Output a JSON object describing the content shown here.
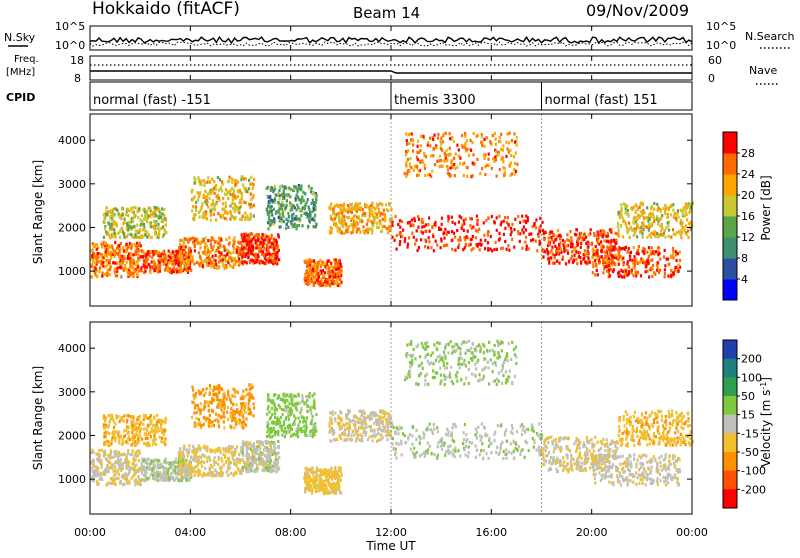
{
  "header": {
    "station": "Hokkaido (fitACF)",
    "beam": "Beam 14",
    "date": "09/Nov/2009"
  },
  "labels": {
    "nsky": "N.Sky",
    "nsearch": "N.Search",
    "freq_line1": "Freq.",
    "freq_line2": "[MHz]",
    "nave": "Nave",
    "cpid": "CPID",
    "nsky_ticks": [
      "10^5",
      "10^0"
    ],
    "nsearch_ticks": [
      "10^5",
      "10^0"
    ],
    "freq_ticks": [
      "18",
      "8"
    ],
    "nave_ticks": [
      "60",
      "0"
    ]
  },
  "cpid_segments": [
    {
      "label": "normal (fast) -151",
      "start_hour": 0,
      "end_hour": 12
    },
    {
      "label": "themis 3300",
      "start_hour": 12,
      "end_hour": 18
    },
    {
      "label": "normal (fast) 151",
      "start_hour": 18,
      "end_hour": 24
    }
  ],
  "x_axis": {
    "label": "Time UT",
    "range_hours": [
      0,
      24
    ],
    "ticks": [
      0,
      4,
      8,
      12,
      16,
      20,
      24
    ],
    "tick_labels": [
      "00:00",
      "04:00",
      "08:00",
      "12:00",
      "16:00",
      "20:00",
      "00:00"
    ]
  },
  "panels": [
    {
      "id": "power",
      "ylabel": "Slant Range [km]",
      "ylim": [
        200,
        4600
      ],
      "yticks": [
        1000,
        2000,
        3000,
        4000
      ],
      "ytick_labels": [
        "1000",
        "2000",
        "3000",
        "4000"
      ],
      "colorbar": {
        "label": "Power [dB]",
        "tick_labels": [
          "4",
          "8",
          "12",
          "16",
          "20",
          "24",
          "28"
        ],
        "colors": [
          "#0000ff",
          "#2b4fa0",
          "#3f8f70",
          "#5aa54a",
          "#c8c832",
          "#ffa500",
          "#ff6a00",
          "#ff0000"
        ]
      }
    },
    {
      "id": "velocity",
      "ylabel": "Slant Range [km]",
      "ylim": [
        200,
        4600
      ],
      "yticks": [
        1000,
        2000,
        3000,
        4000
      ],
      "ytick_labels": [
        "1000",
        "2000",
        "3000",
        "4000"
      ],
      "colorbar": {
        "label": "Velocity [m s",
        "label_sup": "-1",
        "label_end": "]",
        "tick_labels": [
          "200",
          "100",
          "50",
          "15",
          "-15",
          "-50",
          "-100",
          "-200"
        ],
        "colors": [
          "#2040b0",
          "#208080",
          "#30a050",
          "#80c840",
          "#c0c0b8",
          "#f0c030",
          "#ff9000",
          "#ff5000",
          "#ff0000"
        ]
      }
    }
  ],
  "chart_data": {
    "type": "heatmap",
    "x_unit": "hours UT",
    "y_unit": "slant range km",
    "echo_bands": [
      {
        "hour_start": 0.0,
        "hour_end": 2.0,
        "range_low": 900,
        "range_high": 1700,
        "power_db": 25,
        "velocity": -10
      },
      {
        "hour_start": 0.5,
        "hour_end": 3.0,
        "range_low": 1800,
        "range_high": 2500,
        "power_db": 18,
        "velocity": -40
      },
      {
        "hour_start": 2.0,
        "hour_end": 4.0,
        "range_low": 1000,
        "range_high": 1500,
        "power_db": 27,
        "velocity": 5
      },
      {
        "hour_start": 3.5,
        "hour_end": 6.0,
        "range_low": 1100,
        "range_high": 1800,
        "power_db": 24,
        "velocity": -20
      },
      {
        "hour_start": 4.0,
        "hour_end": 6.5,
        "range_low": 2200,
        "range_high": 3200,
        "power_db": 20,
        "velocity": -60
      },
      {
        "hour_start": 6.0,
        "hour_end": 7.5,
        "range_low": 1200,
        "range_high": 1900,
        "power_db": 28,
        "velocity": 0
      },
      {
        "hour_start": 7.0,
        "hour_end": 9.0,
        "range_low": 2000,
        "range_high": 3000,
        "power_db": 12,
        "velocity": 30
      },
      {
        "hour_start": 8.5,
        "hour_end": 10.0,
        "range_low": 700,
        "range_high": 1300,
        "power_db": 26,
        "velocity": -30
      },
      {
        "hour_start": 9.5,
        "hour_end": 12.0,
        "range_low": 1900,
        "range_high": 2600,
        "power_db": 22,
        "velocity": -10
      },
      {
        "hour_start": 12.0,
        "hour_end": 18.0,
        "range_low": 1500,
        "range_high": 2300,
        "power_db": 29,
        "velocity": 5
      },
      {
        "hour_start": 12.5,
        "hour_end": 17.0,
        "range_low": 3200,
        "range_high": 4200,
        "power_db": 24,
        "velocity": 20
      },
      {
        "hour_start": 18.0,
        "hour_end": 21.0,
        "range_low": 1200,
        "range_high": 2000,
        "power_db": 28,
        "velocity": -10
      },
      {
        "hour_start": 20.0,
        "hour_end": 23.5,
        "range_low": 900,
        "range_high": 1600,
        "power_db": 27,
        "velocity": -5
      },
      {
        "hour_start": 21.0,
        "hour_end": 24.0,
        "range_low": 1800,
        "range_high": 2600,
        "power_db": 20,
        "velocity": -40
      }
    ]
  }
}
